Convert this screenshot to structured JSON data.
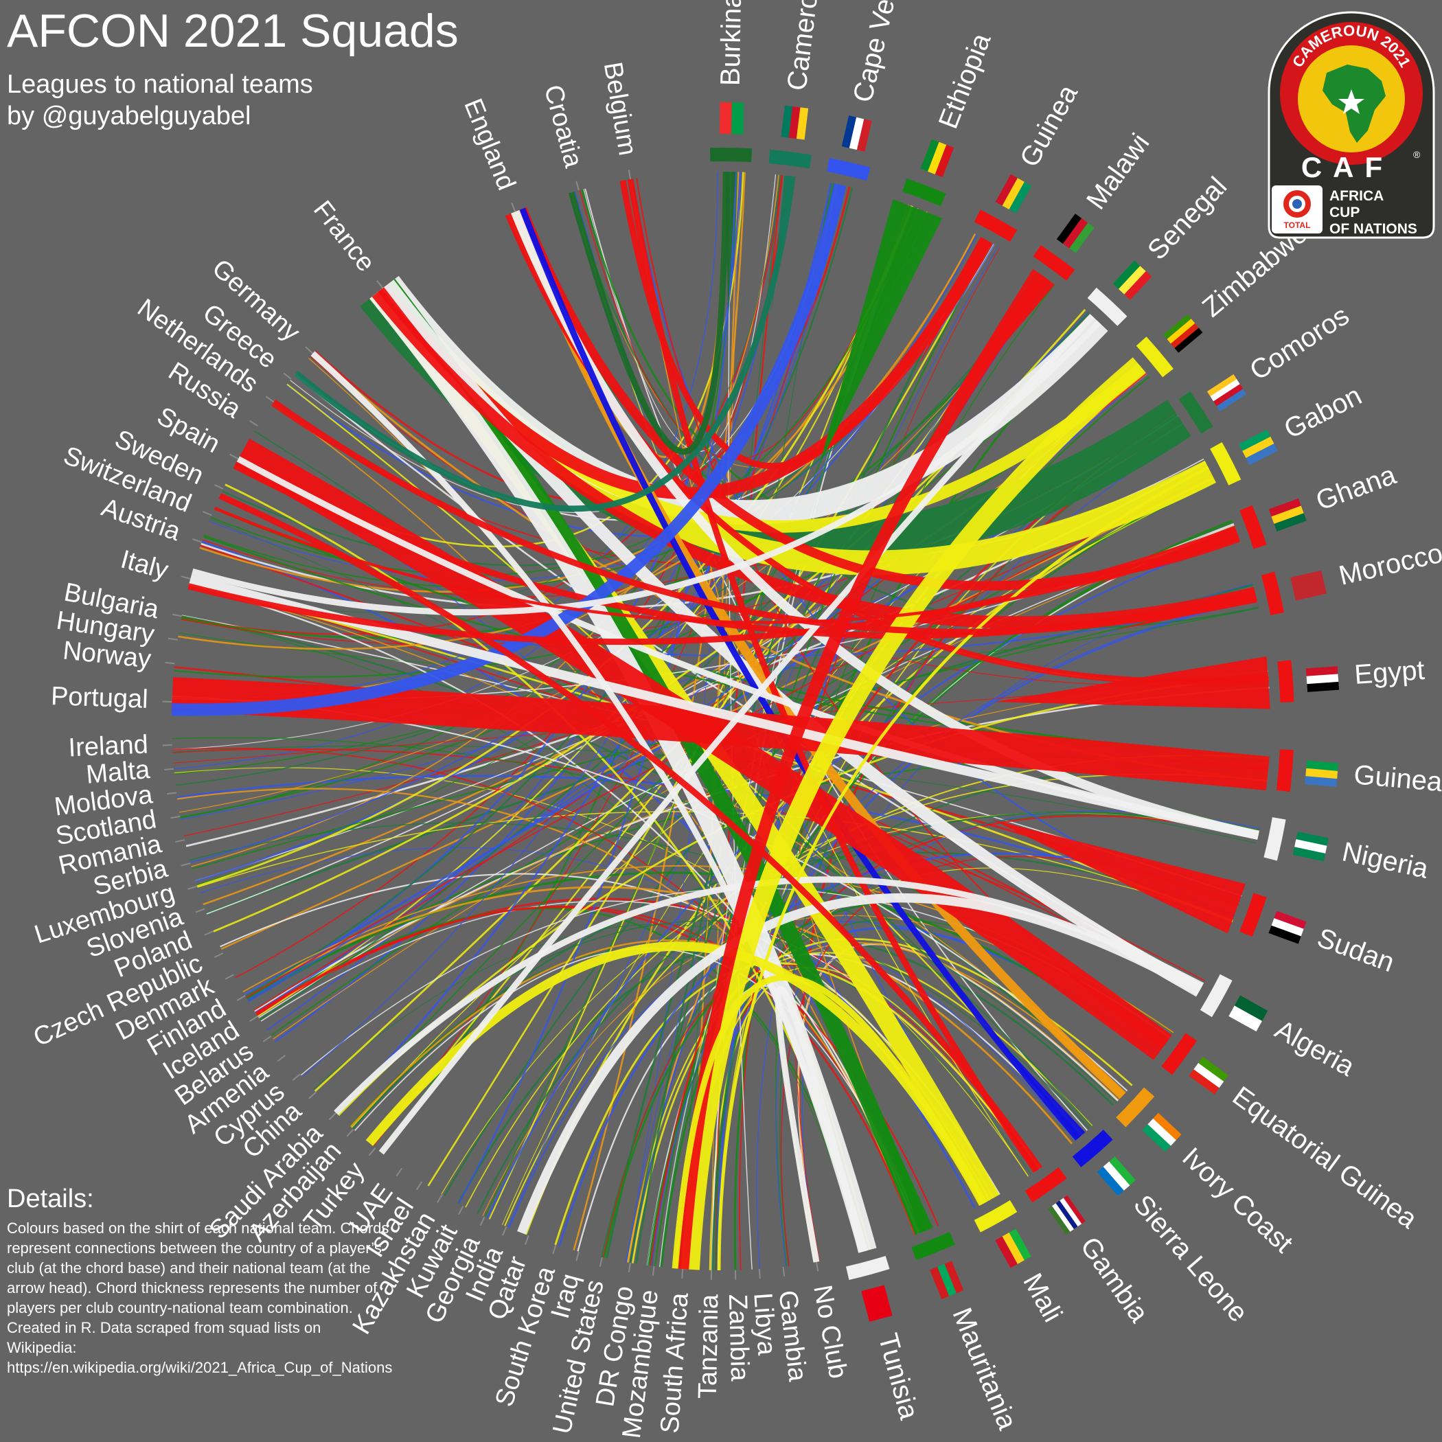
{
  "header": {
    "title": "AFCON 2021 Squads",
    "subtitle_line1": "Leagues to national teams",
    "subtitle_line2": "by @guyabelguyabel"
  },
  "details": {
    "heading": "Details:",
    "body": "Colours based on the shirt of each national team. Chords represent connections between the country of a player’s club (at the chord base) and their national team (at the arrow head). Chord thickness represents the number of players per club country-national team combination. Created in R. Data scraped from squad lists on Wikipedia:",
    "url": "https://en.wikipedia.org/wiki/2021_Africa_Cup_of_Nations"
  },
  "logo": {
    "arc_text": "CAMEROUN 2021",
    "caf": "CAF",
    "registered": "®",
    "brand": "TOTAL",
    "line1": "AFRICA",
    "line2": "CUP",
    "line3": "OF NATIONS"
  },
  "chart_data": {
    "type": "chord",
    "title": "AFCON 2021 Squads",
    "subtitle": "Leagues to national teams",
    "national_teams": [
      {
        "name": "Burkina Faso",
        "color": "#1a6b2a",
        "angle": 1
      },
      {
        "name": "Cameroon",
        "color": "#137a5a",
        "angle": 7
      },
      {
        "name": "Cape Verde",
        "color": "#3355ee",
        "angle": 13
      },
      {
        "name": "Ethiopia",
        "color": "#128a12",
        "angle": 21
      },
      {
        "name": "Guinea",
        "color": "#ee1111",
        "angle": 29
      },
      {
        "name": "Malawi",
        "color": "#ee1111",
        "angle": 36
      },
      {
        "name": "Senegal",
        "color": "#f0f0f0",
        "angle": 43
      },
      {
        "name": "Zimbabwe",
        "color": "#f0ee10",
        "angle": 50
      },
      {
        "name": "Comoros",
        "color": "#1f7a3a",
        "angle": 57
      },
      {
        "name": "Gabon",
        "color": "#f0ee10",
        "angle": 63
      },
      {
        "name": "Ghana",
        "color": "#ee1111",
        "angle": 70
      },
      {
        "name": "Morocco",
        "color": "#ee1111",
        "angle": 77
      },
      {
        "name": "Egypt",
        "color": "#ee1111",
        "angle": 86
      },
      {
        "name": "Guinea-Bissau",
        "color": "#ee1111",
        "angle": 95
      },
      {
        "name": "Nigeria",
        "color": "#f0f0f0",
        "angle": 102
      },
      {
        "name": "Sudan",
        "color": "#ee1111",
        "angle": 110
      },
      {
        "name": "Algeria",
        "color": "#f0f0f0",
        "angle": 119
      },
      {
        "name": "Equatorial Guinea",
        "color": "#ee1111",
        "angle": 126
      },
      {
        "name": "Ivory Coast",
        "color": "#f09a10",
        "angle": 133
      },
      {
        "name": "Sierra Leone",
        "color": "#1010e0",
        "angle": 139
      },
      {
        "name": "Gambia",
        "color": "#ee1111",
        "angle": 145
      },
      {
        "name": "Mali",
        "color": "#f0ee10",
        "angle": 151
      },
      {
        "name": "Mauritania",
        "color": "#128a12",
        "angle": 158
      },
      {
        "name": "Tunisia",
        "color": "#f0f0f0",
        "angle": 165
      }
    ],
    "leagues": [
      {
        "name": "No Club",
        "angle": 170
      },
      {
        "name": "Gambia",
        "angle": 173.5
      },
      {
        "name": "Libya",
        "angle": 176
      },
      {
        "name": "Zambia",
        "angle": 178.5
      },
      {
        "name": "Tanzania",
        "angle": 181
      },
      {
        "name": "South Africa",
        "angle": 184
      },
      {
        "name": "Mozambique",
        "angle": 187
      },
      {
        "name": "DR Congo",
        "angle": 189.5
      },
      {
        "name": "United States",
        "angle": 192.5
      },
      {
        "name": "Iraq",
        "angle": 195
      },
      {
        "name": "South Korea",
        "angle": 197.5
      },
      {
        "name": "Qatar",
        "angle": 200.5
      },
      {
        "name": "India",
        "angle": 203
      },
      {
        "name": "Georgia",
        "angle": 205.5
      },
      {
        "name": "Kuwait",
        "angle": 208
      },
      {
        "name": "Kazakhstan",
        "angle": 210.5
      },
      {
        "name": "Israel",
        "angle": 213
      },
      {
        "name": "UAE",
        "angle": 215.5
      },
      {
        "name": "Turkey",
        "angle": 219
      },
      {
        "name": "Azerbaijan",
        "angle": 222
      },
      {
        "name": "Saudi Arabia",
        "angle": 224.5
      },
      {
        "name": "China",
        "angle": 227.5
      },
      {
        "name": "Cyprus",
        "angle": 230
      },
      {
        "name": "Armenia",
        "angle": 232.5
      },
      {
        "name": "Belarus",
        "angle": 235
      },
      {
        "name": "Iceland",
        "angle": 237.5
      },
      {
        "name": "Finland",
        "angle": 240
      },
      {
        "name": "Denmark",
        "angle": 242.5
      },
      {
        "name": "Czech Republic",
        "angle": 245
      },
      {
        "name": "Poland",
        "angle": 247.5
      },
      {
        "name": "Slovenia",
        "angle": 250
      },
      {
        "name": "Luxembourg",
        "angle": 252.5
      },
      {
        "name": "Serbia",
        "angle": 255
      },
      {
        "name": "Romania",
        "angle": 257.5
      },
      {
        "name": "Scotland",
        "angle": 260
      },
      {
        "name": "Moldova",
        "angle": 262.5
      },
      {
        "name": "Malta",
        "angle": 265
      },
      {
        "name": "Ireland",
        "angle": 267.5
      },
      {
        "name": "Portugal",
        "angle": 272
      },
      {
        "name": "Norway",
        "angle": 276
      },
      {
        "name": "Hungary",
        "angle": 278.5
      },
      {
        "name": "Bulgaria",
        "angle": 281
      },
      {
        "name": "Italy",
        "angle": 285
      },
      {
        "name": "Austria",
        "angle": 289
      },
      {
        "name": "Switzerland",
        "angle": 292
      },
      {
        "name": "Sweden",
        "angle": 295
      },
      {
        "name": "Spain",
        "angle": 298.5
      },
      {
        "name": "Russia",
        "angle": 302.5
      },
      {
        "name": "Netherlands",
        "angle": 305.5
      },
      {
        "name": "Greece",
        "angle": 308.5
      },
      {
        "name": "Germany",
        "angle": 312
      },
      {
        "name": "France",
        "angle": 322
      },
      {
        "name": "England",
        "angle": 338
      },
      {
        "name": "Croatia",
        "angle": 345
      },
      {
        "name": "Belgium",
        "angle": 350.5
      }
    ],
    "flows": [
      {
        "from": "France",
        "to": "Comoros",
        "players": 14
      },
      {
        "from": "France",
        "to": "Gabon",
        "players": 8
      },
      {
        "from": "France",
        "to": "Senegal",
        "players": 8
      },
      {
        "from": "France",
        "to": "Mali",
        "players": 6
      },
      {
        "from": "France",
        "to": "Zimbabwe",
        "players": 4
      },
      {
        "from": "France",
        "to": "Mauritania",
        "players": 5
      },
      {
        "from": "France",
        "to": "Tunisia",
        "players": 6
      },
      {
        "from": "France",
        "to": "Guinea",
        "players": 4
      },
      {
        "from": "France",
        "to": "Algeria",
        "players": 4
      },
      {
        "from": "France",
        "to": "Morocco",
        "players": 4
      },
      {
        "from": "England",
        "to": "Ivory Coast",
        "players": 3
      },
      {
        "from": "England",
        "to": "Ghana",
        "players": 3
      },
      {
        "from": "England",
        "to": "Egypt",
        "players": 2
      },
      {
        "from": "England",
        "to": "Nigeria",
        "players": 3
      },
      {
        "from": "England",
        "to": "Sierra Leone",
        "players": 2
      },
      {
        "from": "Belgium",
        "to": "Guinea",
        "players": 2
      },
      {
        "from": "Belgium",
        "to": "Gambia",
        "players": 2
      },
      {
        "from": "Spain",
        "to": "Equatorial Guinea",
        "players": 10
      },
      {
        "from": "Spain",
        "to": "Morocco",
        "players": 2
      },
      {
        "from": "Spain",
        "to": "Nigeria",
        "players": 2
      },
      {
        "from": "Portugal",
        "to": "Guinea-Bissau",
        "players": 11
      },
      {
        "from": "Portugal",
        "to": "Cape Verde",
        "players": 4
      },
      {
        "from": "Italy",
        "to": "Nigeria",
        "players": 3
      },
      {
        "from": "Italy",
        "to": "Senegal",
        "players": 2
      },
      {
        "from": "Italy",
        "to": "Ghana",
        "players": 2
      },
      {
        "from": "Germany",
        "to": "Tunisia",
        "players": 2
      },
      {
        "from": "Turkey",
        "to": "Mali",
        "players": 3
      },
      {
        "from": "Turkey",
        "to": "Senegal",
        "players": 2
      },
      {
        "from": "Saudi Arabia",
        "to": "Algeria",
        "players": 2
      },
      {
        "from": "Qatar",
        "to": "Algeria",
        "players": 3
      },
      {
        "from": "South Africa",
        "to": "Zimbabwe",
        "players": 6
      },
      {
        "from": "South Africa",
        "to": "Malawi",
        "players": 4
      },
      {
        "from": "South Africa",
        "to": "Mali",
        "players": 2
      },
      {
        "from": "Tanzania",
        "to": "Gabon",
        "players": 1
      },
      {
        "from": "No Club",
        "to": "Tunisia",
        "players": 2
      },
      {
        "from": "Switzerland",
        "to": "Ghana",
        "players": 1
      },
      {
        "from": "Sweden",
        "to": "Gambia",
        "players": 2
      },
      {
        "from": "Netherlands",
        "to": "Morocco",
        "players": 2
      },
      {
        "from": "Greece",
        "to": "Cameroon",
        "players": 2
      },
      {
        "from": "Croatia",
        "to": "Burkina Faso",
        "players": 2
      }
    ],
    "domestic_flows": [
      {
        "team": "Egypt",
        "players": 22
      },
      {
        "team": "Sudan",
        "players": 20
      },
      {
        "team": "Ethiopia",
        "players": 22
      },
      {
        "team": "Morocco",
        "players": 3
      },
      {
        "team": "Ghana",
        "players": 4
      },
      {
        "team": "Burkina Faso",
        "players": 3
      },
      {
        "team": "Cameroon",
        "players": 2
      },
      {
        "team": "Malawi",
        "players": 8
      },
      {
        "team": "Guinea",
        "players": 3
      },
      {
        "team": "Algeria",
        "players": 3
      },
      {
        "team": "Tunisia",
        "players": 3
      },
      {
        "team": "Mauritania",
        "players": 4
      },
      {
        "team": "Sierra Leone",
        "players": 3
      },
      {
        "team": "Gambia",
        "players": 1
      },
      {
        "team": "Ivory Coast",
        "players": 2
      },
      {
        "team": "Equatorial Guinea",
        "players": 3
      },
      {
        "team": "Nigeria",
        "players": 1
      },
      {
        "team": "Guinea-Bissau",
        "players": 1
      }
    ],
    "flag_colors": {
      "Burkina Faso": [
        "#ef2b2d",
        "#009e49"
      ],
      "Cameroon": [
        "#007a5e",
        "#ce1126",
        "#fcd116"
      ],
      "Cape Verde": [
        "#003893",
        "#ffffff",
        "#cf2027"
      ],
      "Ethiopia": [
        "#078930",
        "#fcdd09",
        "#da121a"
      ],
      "Guinea": [
        "#ce1126",
        "#fcd116",
        "#009460"
      ],
      "Malawi": [
        "#000000",
        "#ce1126",
        "#339e35"
      ],
      "Senegal": [
        "#00853f",
        "#fdef42",
        "#e31b23"
      ],
      "Zimbabwe": [
        "#319208",
        "#ffd200",
        "#de2010",
        "#000000"
      ],
      "Comoros": [
        "#ffc61e",
        "#ffffff",
        "#ce1126",
        "#3a75c4"
      ],
      "Gabon": [
        "#009e60",
        "#fcd116",
        "#3a75c4"
      ],
      "Ghana": [
        "#ce1126",
        "#fcd116",
        "#006b3f"
      ],
      "Morocco": [
        "#c1272d"
      ],
      "Egypt": [
        "#ce1126",
        "#ffffff",
        "#000000"
      ],
      "Guinea-Bissau": [
        "#009e49",
        "#fcd116",
        "#3a75c4"
      ],
      "Nigeria": [
        "#008751",
        "#ffffff",
        "#008751"
      ],
      "Sudan": [
        "#d21034",
        "#ffffff",
        "#000000"
      ],
      "Algeria": [
        "#006233",
        "#ffffff"
      ],
      "Equatorial Guinea": [
        "#3e9a00",
        "#ffffff",
        "#e32118"
      ],
      "Ivory Coast": [
        "#f77f00",
        "#ffffff",
        "#009e60"
      ],
      "Sierra Leone": [
        "#1eb53a",
        "#ffffff",
        "#0072c6"
      ],
      "Gambia": [
        "#ce1126",
        "#ffffff",
        "#0c1c8c",
        "#ffffff",
        "#3a7728"
      ],
      "Mali": [
        "#14b53a",
        "#fcd116",
        "#ce1126"
      ],
      "Mauritania": [
        "#d01c1f",
        "#00a95c",
        "#d01c1f"
      ],
      "Tunisia": [
        "#e70013"
      ]
    }
  }
}
